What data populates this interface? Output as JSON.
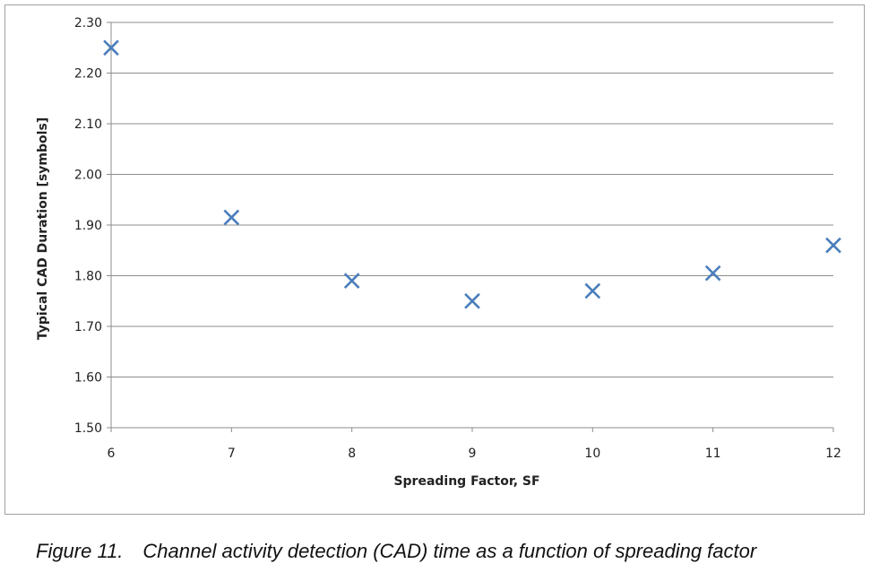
{
  "chart_data": {
    "type": "scatter",
    "title": "",
    "xlabel": "Spreading Factor, SF",
    "ylabel": "Typical  CAD Duration [symbols]",
    "xlim": [
      6,
      12
    ],
    "ylim": [
      1.5,
      2.3
    ],
    "x_ticks": [
      "6",
      "7",
      "8",
      "9",
      "10",
      "11",
      "12"
    ],
    "y_ticks": [
      "1.50",
      "1.60",
      "1.70",
      "1.80",
      "1.90",
      "2.00",
      "2.10",
      "2.20",
      "2.30"
    ],
    "grid": "horizontal",
    "marker": "x",
    "marker_color": "#4a7ebb",
    "points": [
      {
        "x": 6,
        "y": 2.25
      },
      {
        "x": 7,
        "y": 1.915
      },
      {
        "x": 8,
        "y": 1.79
      },
      {
        "x": 9,
        "y": 1.75
      },
      {
        "x": 10,
        "y": 1.77
      },
      {
        "x": 11,
        "y": 1.805
      },
      {
        "x": 12,
        "y": 1.86
      }
    ]
  },
  "caption": {
    "number": "Figure 11.",
    "text": "Channel activity detection (CAD) time as a function of spreading factor"
  }
}
